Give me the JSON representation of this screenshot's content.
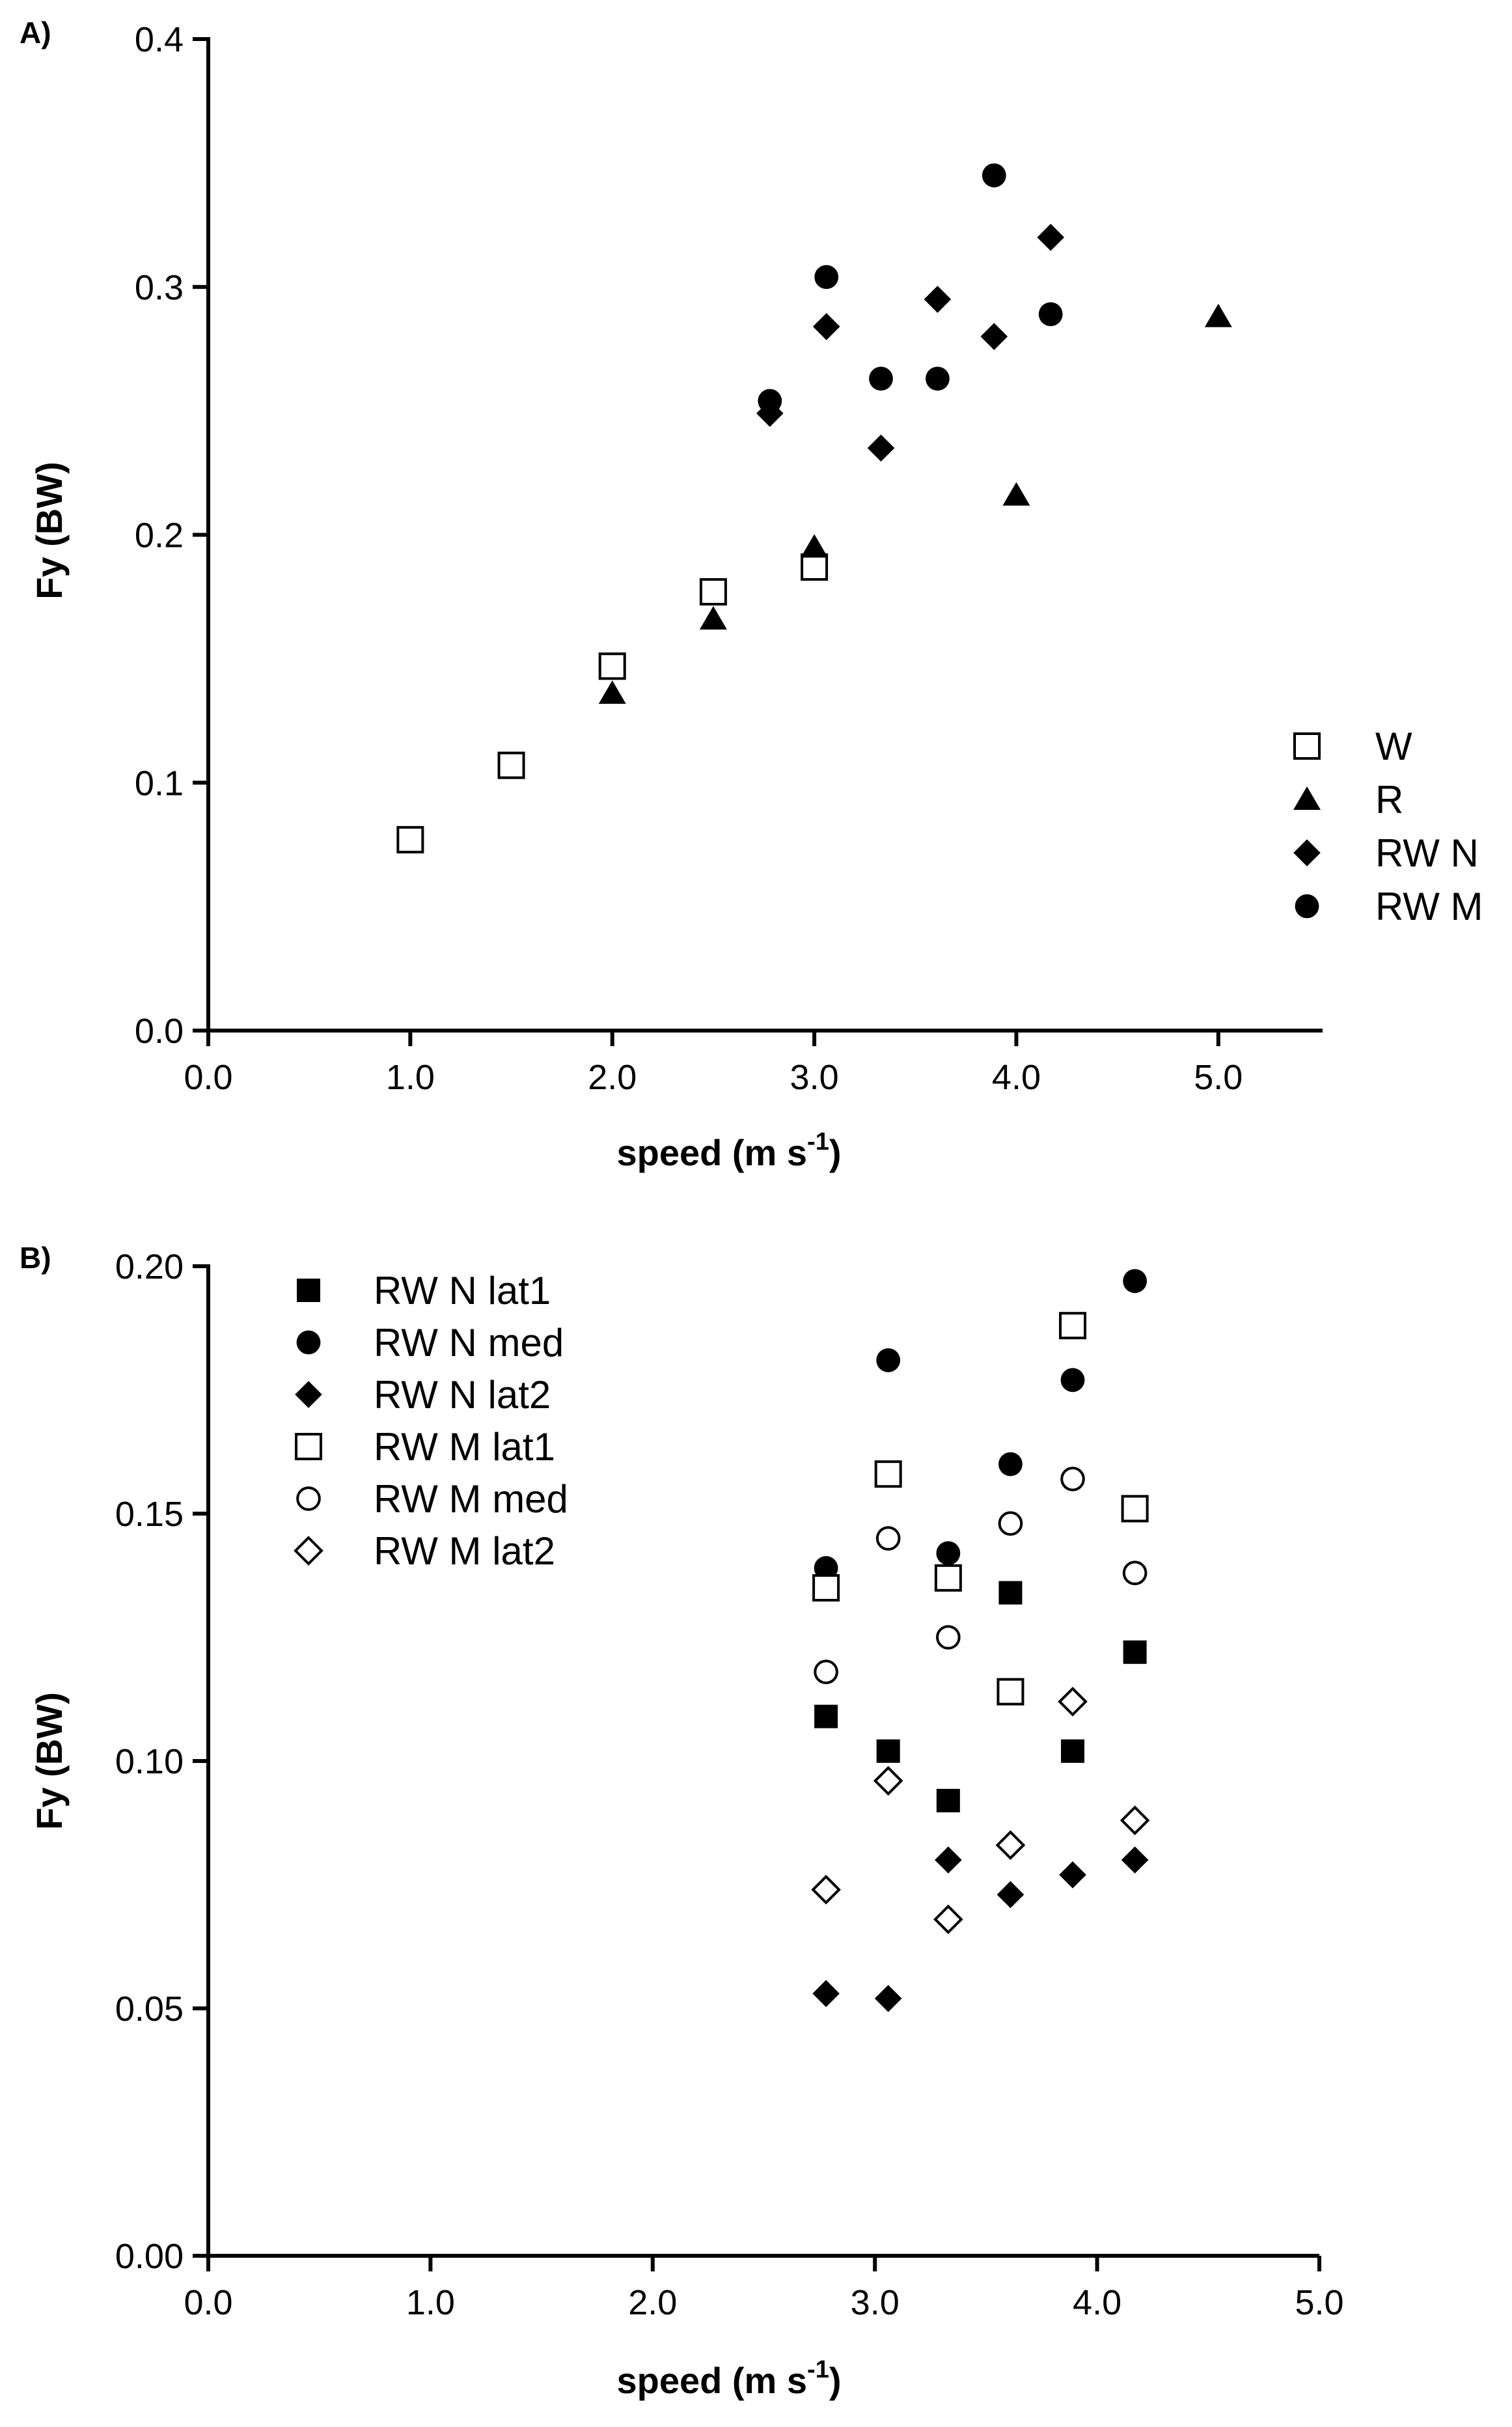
{
  "chart_data": [
    {
      "type": "scatter",
      "panel_label": "A)",
      "xlabel": "speed (m s",
      "xlabel_sup": "-1",
      "xlabel_close": ")",
      "ylabel": "Fy (BW)",
      "xlim": [
        0,
        5.5
      ],
      "ylim": [
        0,
        0.4
      ],
      "xticks": [
        0,
        1,
        2,
        3,
        4,
        5
      ],
      "xtick_labels": [
        "0.0",
        "1.0",
        "2.0",
        "3.0",
        "4.0",
        "5.0"
      ],
      "yticks": [
        0,
        0.1,
        0.2,
        0.3,
        0.4
      ],
      "ytick_labels": [
        "0.0",
        "0.1",
        "0.2",
        "0.3",
        "0.4"
      ],
      "legend_position": "right",
      "series": [
        {
          "name": "W",
          "marker": "square-open",
          "points": [
            [
              1.0,
              0.077
            ],
            [
              1.5,
              0.107
            ],
            [
              2.0,
              0.147
            ],
            [
              2.5,
              0.177
            ],
            [
              3.0,
              0.187
            ]
          ]
        },
        {
          "name": "R",
          "marker": "triangle-filled",
          "points": [
            [
              2.0,
              0.136
            ],
            [
              2.5,
              0.166
            ],
            [
              3.0,
              0.195
            ],
            [
              4.0,
              0.216
            ],
            [
              5.0,
              0.288
            ]
          ]
        },
        {
          "name": "RW N",
          "marker": "diamond-filled",
          "points": [
            [
              2.78,
              0.249
            ],
            [
              3.06,
              0.284
            ],
            [
              3.33,
              0.235
            ],
            [
              3.61,
              0.295
            ],
            [
              3.89,
              0.28
            ],
            [
              4.17,
              0.32
            ]
          ]
        },
        {
          "name": "RW M",
          "marker": "circle-filled",
          "points": [
            [
              2.78,
              0.254
            ],
            [
              3.06,
              0.304
            ],
            [
              3.33,
              0.263
            ],
            [
              3.61,
              0.263
            ],
            [
              3.89,
              0.345
            ],
            [
              4.17,
              0.289
            ]
          ]
        }
      ]
    },
    {
      "type": "scatter",
      "panel_label": "B)",
      "xlabel": "speed (m s",
      "xlabel_sup": "-1",
      "xlabel_close": ")",
      "ylabel": "Fy (BW)",
      "xlim": [
        0,
        5
      ],
      "ylim": [
        0,
        0.2
      ],
      "xticks": [
        0,
        1,
        2,
        3,
        4,
        5
      ],
      "xtick_labels": [
        "0.0",
        "1.0",
        "2.0",
        "3.0",
        "4.0",
        "5.0"
      ],
      "yticks": [
        0,
        0.05,
        0.1,
        0.15,
        0.2
      ],
      "ytick_labels": [
        "0.00",
        "0.05",
        "0.10",
        "0.15",
        "0.20"
      ],
      "legend_position": "top-left",
      "series": [
        {
          "name": "RW N lat1",
          "marker": "square-filled",
          "points": [
            [
              2.78,
              0.109
            ],
            [
              3.06,
              0.102
            ],
            [
              3.33,
              0.092
            ],
            [
              3.61,
              0.134
            ],
            [
              3.89,
              0.102
            ],
            [
              4.17,
              0.122
            ]
          ]
        },
        {
          "name": "RW N med",
          "marker": "circle-filled",
          "points": [
            [
              2.78,
              0.139
            ],
            [
              3.06,
              0.181
            ],
            [
              3.33,
              0.142
            ],
            [
              3.61,
              0.16
            ],
            [
              3.89,
              0.177
            ],
            [
              4.17,
              0.197
            ]
          ]
        },
        {
          "name": "RW N lat2",
          "marker": "diamond-filled",
          "points": [
            [
              2.78,
              0.053
            ],
            [
              3.06,
              0.052
            ],
            [
              3.33,
              0.08
            ],
            [
              3.61,
              0.073
            ],
            [
              3.89,
              0.077
            ],
            [
              4.17,
              0.08
            ]
          ]
        },
        {
          "name": "RW M lat1",
          "marker": "square-open",
          "points": [
            [
              2.78,
              0.135
            ],
            [
              3.06,
              0.158
            ],
            [
              3.33,
              0.137
            ],
            [
              3.61,
              0.114
            ],
            [
              3.89,
              0.188
            ],
            [
              4.17,
              0.151
            ]
          ]
        },
        {
          "name": "RW M med",
          "marker": "circle-open",
          "points": [
            [
              2.78,
              0.118
            ],
            [
              3.06,
              0.145
            ],
            [
              3.33,
              0.125
            ],
            [
              3.61,
              0.148
            ],
            [
              3.89,
              0.157
            ],
            [
              4.17,
              0.138
            ]
          ]
        },
        {
          "name": "RW M lat2",
          "marker": "diamond-open",
          "points": [
            [
              2.78,
              0.074
            ],
            [
              3.06,
              0.096
            ],
            [
              3.33,
              0.068
            ],
            [
              3.61,
              0.083
            ],
            [
              3.89,
              0.112
            ],
            [
              4.17,
              0.088
            ]
          ]
        }
      ]
    }
  ]
}
